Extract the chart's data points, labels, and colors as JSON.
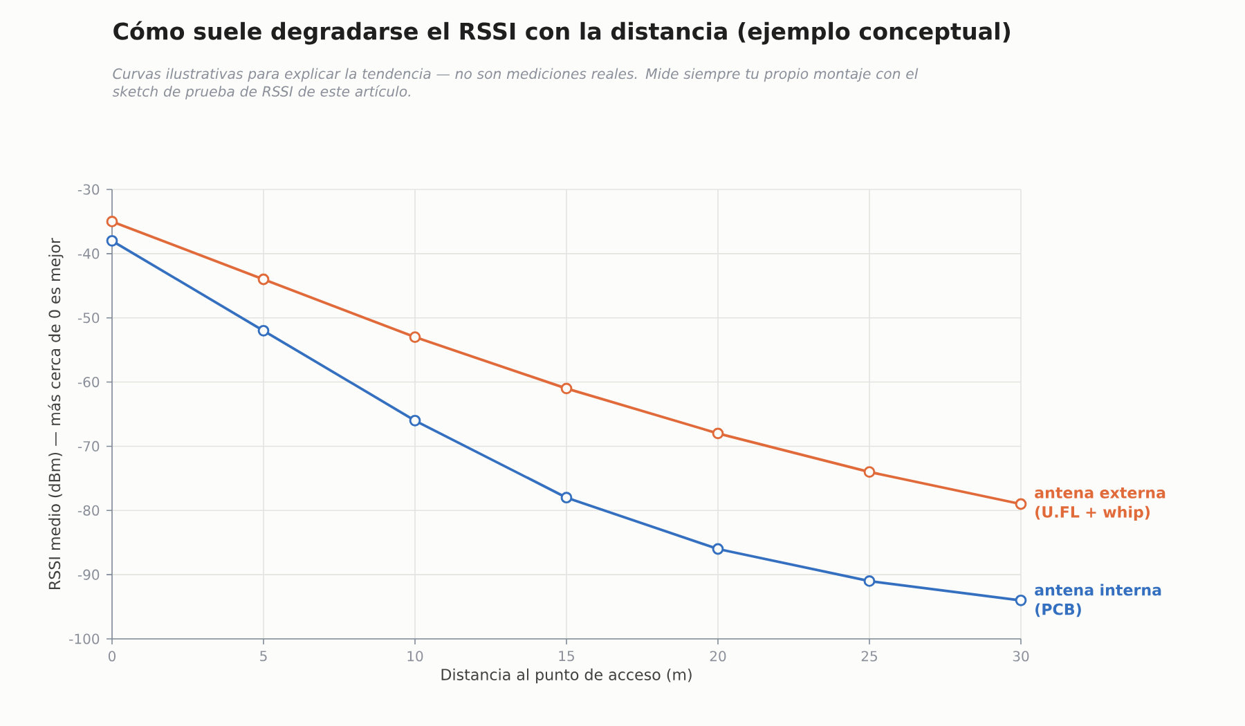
{
  "chart_data": {
    "type": "line",
    "title": "Cómo suele degradarse el RSSI con la distancia (ejemplo conceptual)",
    "subtitle": "Curvas ilustrativas para explicar la tendencia — no son mediciones reales. Mide siempre tu propio montaje con el sketch de prueba de RSSI de este artículo.",
    "xlabel": "Distancia al punto de acceso (m)",
    "ylabel": "RSSI medio (dBm) — más cerca de 0 es mejor",
    "x": [
      0,
      5,
      10,
      15,
      20,
      25,
      30
    ],
    "series": [
      {
        "name": "antena externa (U.FL + whip)",
        "color": "#e06a3a",
        "values": [
          -35,
          -44,
          -53,
          -61,
          -68,
          -74,
          -79
        ]
      },
      {
        "name": "antena interna (PCB)",
        "color": "#3470bf",
        "values": [
          -38,
          -52,
          -66,
          -78,
          -86,
          -91,
          -94
        ]
      }
    ],
    "xlim": [
      0,
      30
    ],
    "xticks": [
      0,
      5,
      10,
      15,
      20,
      25,
      30
    ],
    "ylim": [
      -100,
      -30
    ],
    "yticks": [
      -100,
      -90,
      -80,
      -70,
      -60,
      -50,
      -40,
      -30
    ],
    "grid": true,
    "legend": false,
    "marker": "circle",
    "line_style": "solid"
  }
}
